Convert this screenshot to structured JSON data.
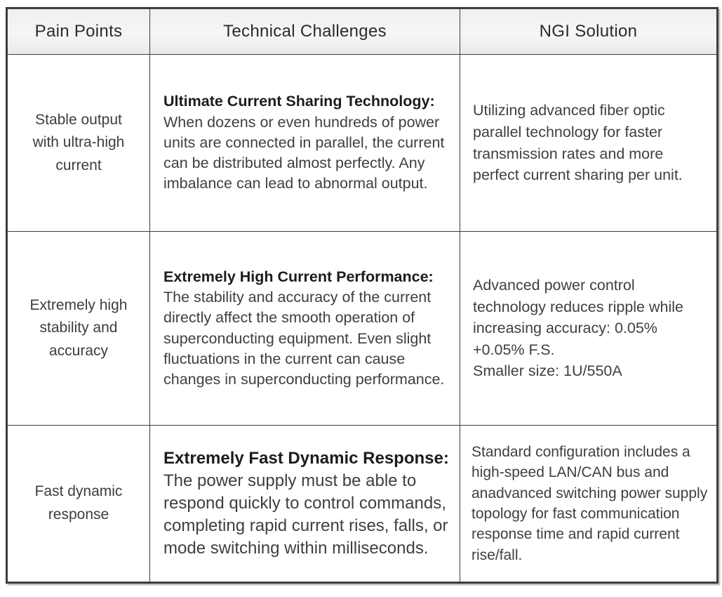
{
  "table": {
    "headers": [
      "Pain Points",
      "Technical Challenges",
      "NGI Solution"
    ],
    "rows": [
      {
        "pain_point": "Stable output with ultra-high current",
        "challenge_title": "Ultimate Current Sharing Technology:",
        "challenge_body": " When dozens or even hundreds of power units are connected in parallel, the current can be distributed almost perfectly. Any imbalance can lead to abnormal output.",
        "solution": "Utilizing advanced fiber optic parallel technology for faster transmission rates and more perfect current sharing per unit."
      },
      {
        "pain_point": "Extremely high stability and accuracy",
        "challenge_title": "Extremely High Current Performance:",
        "challenge_body": " The stability and accuracy of the current directly affect the smooth operation of superconducting equipment. Even slight fluctuations in the current can cause changes in superconducting performance.",
        "solution": "Advanced power control technology reduces ripple while increasing accuracy: 0.05% +0.05% F.S.\nSmaller size: 1U/550A"
      },
      {
        "pain_point": "Fast dynamic response",
        "challenge_title": "Extremely Fast Dynamic Response:",
        "challenge_body": " The power supply must be able to respond quickly to control commands, completing rapid current rises, falls, or mode switching within milliseconds.",
        "solution": "Standard configuration includes a high-speed LAN/CAN bus and anadvanced switching power supply topology for fast communication response time and rapid current rise/fall."
      }
    ]
  }
}
